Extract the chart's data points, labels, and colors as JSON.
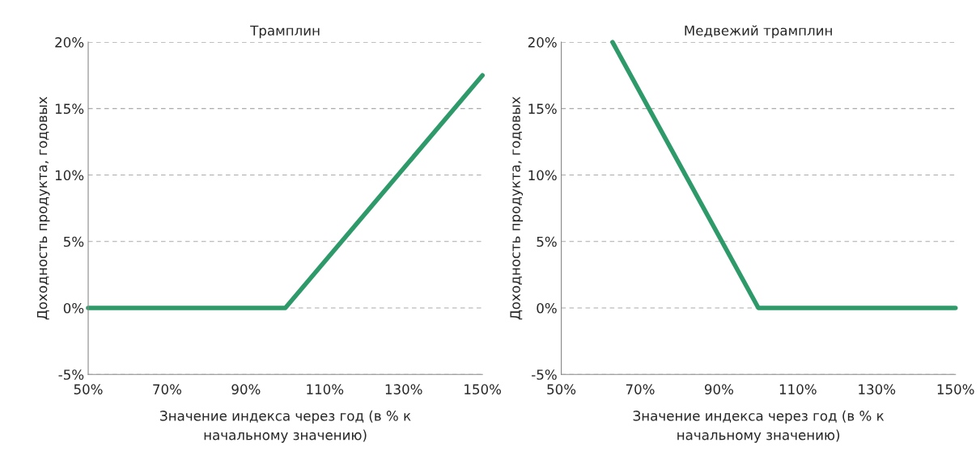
{
  "chart_data": [
    {
      "type": "line",
      "title": "Трамплин",
      "xlabel": "Значение индекса через год (в % к\nначальному значению)",
      "ylabel": "Доходность продукта, годовых",
      "series": [
        {
          "color": "#2e9a6a",
          "x": [
            50,
            100,
            150
          ],
          "values": [
            0,
            0,
            17.5
          ]
        }
      ],
      "xlim": [
        50,
        150
      ],
      "xticks": [
        {
          "value": 50,
          "label": "50%"
        },
        {
          "value": 70,
          "label": "70%"
        },
        {
          "value": 90,
          "label": "90%"
        },
        {
          "value": 110,
          "label": "110%"
        },
        {
          "value": 130,
          "label": "130%"
        },
        {
          "value": 150,
          "label": "150%"
        }
      ],
      "ylim": [
        -5,
        20
      ],
      "yticks": [
        {
          "value": -5,
          "label": "-5%"
        },
        {
          "value": 0,
          "label": "0%"
        },
        {
          "value": 5,
          "label": "5%"
        },
        {
          "value": 10,
          "label": "10%"
        },
        {
          "value": 15,
          "label": "15%"
        },
        {
          "value": 20,
          "label": "20%"
        }
      ],
      "grid": "y"
    },
    {
      "type": "line",
      "title": "Медвежий трамплин",
      "xlabel": "Значение индекса через год (в % к\nначальному значению)",
      "ylabel": "Доходность продукта, годовых",
      "series": [
        {
          "color": "#2e9a6a",
          "x": [
            63,
            100,
            150
          ],
          "values": [
            20,
            0,
            0
          ]
        }
      ],
      "xlim": [
        50,
        150
      ],
      "xticks": [
        {
          "value": 50,
          "label": "50%"
        },
        {
          "value": 70,
          "label": "70%"
        },
        {
          "value": 90,
          "label": "90%"
        },
        {
          "value": 110,
          "label": "110%"
        },
        {
          "value": 130,
          "label": "130%"
        },
        {
          "value": 150,
          "label": "150%"
        }
      ],
      "ylim": [
        -5,
        20
      ],
      "yticks": [
        {
          "value": -5,
          "label": "-5%"
        },
        {
          "value": 0,
          "label": "0%"
        },
        {
          "value": 5,
          "label": "5%"
        },
        {
          "value": 10,
          "label": "10%"
        },
        {
          "value": 15,
          "label": "15%"
        },
        {
          "value": 20,
          "label": "20%"
        }
      ],
      "grid": "y"
    }
  ]
}
